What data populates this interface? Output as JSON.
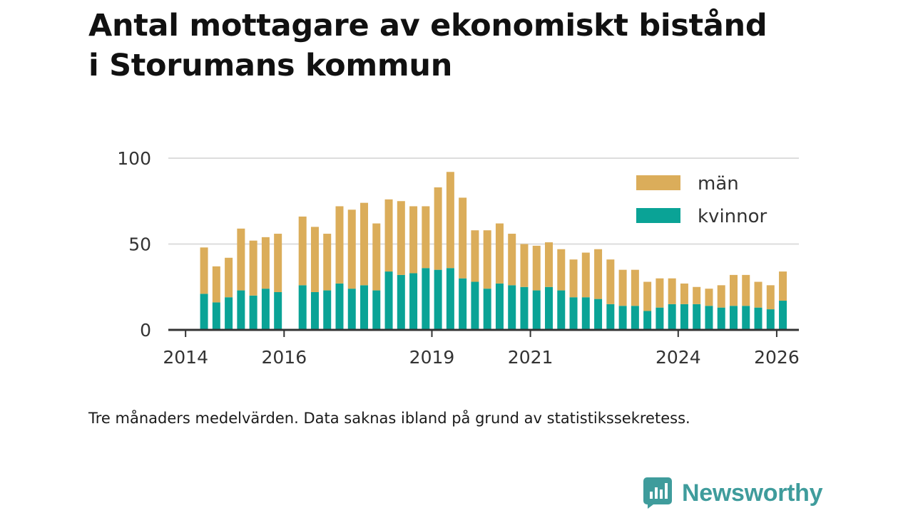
{
  "title_lines": [
    "Antal mottagare av ekonomiskt bistånd",
    "i Storumans kommun"
  ],
  "caption": "Tre månaders medelvärden. Data saknas ibland på grund av statistikssekretess.",
  "brand": "Newsworthy",
  "colors": {
    "man": "#dbad5a",
    "kvinnor": "#0aa396",
    "brand": "#3f9c9c"
  },
  "chart_data": {
    "type": "bar",
    "stacked": true,
    "title": "Antal mottagare av ekonomiskt bistånd i Storumans kommun",
    "xlabel": "",
    "ylabel": "",
    "ylim": [
      0,
      100
    ],
    "yticks": [
      0,
      50,
      100
    ],
    "xlim": [
      2013.65,
      2026.45
    ],
    "xticks": [
      2014,
      2016,
      2019,
      2021,
      2024,
      2026
    ],
    "grid": true,
    "legend_position": "top-right",
    "x": [
      2014.375,
      2014.625,
      2014.875,
      2015.125,
      2015.375,
      2015.625,
      2015.875,
      2016.375,
      2016.625,
      2016.875,
      2017.125,
      2017.375,
      2017.625,
      2017.875,
      2018.125,
      2018.375,
      2018.625,
      2018.875,
      2019.125,
      2019.375,
      2019.625,
      2019.875,
      2020.125,
      2020.375,
      2020.625,
      2020.875,
      2021.125,
      2021.375,
      2021.625,
      2021.875,
      2022.125,
      2022.375,
      2022.625,
      2022.875,
      2023.125,
      2023.375,
      2023.625,
      2023.875,
      2024.125,
      2024.375,
      2024.625,
      2024.875,
      2025.125,
      2025.375,
      2025.625,
      2025.875,
      2026.125
    ],
    "series": [
      {
        "name": "kvinnor",
        "values": [
          21,
          16,
          19,
          23,
          20,
          24,
          22,
          26,
          22,
          23,
          27,
          24,
          26,
          23,
          34,
          32,
          33,
          36,
          35,
          36,
          30,
          28,
          24,
          27,
          26,
          25,
          23,
          25,
          23,
          19,
          19,
          18,
          15,
          14,
          14,
          11,
          13,
          15,
          15,
          15,
          14,
          13,
          14,
          14,
          13,
          12,
          17
        ]
      },
      {
        "name": "män",
        "values": [
          27,
          21,
          23,
          36,
          32,
          30,
          34,
          40,
          38,
          33,
          45,
          46,
          48,
          39,
          42,
          43,
          39,
          36,
          48,
          56,
          47,
          30,
          34,
          35,
          30,
          25,
          26,
          26,
          24,
          22,
          26,
          29,
          26,
          21,
          21,
          17,
          17,
          15,
          12,
          10,
          10,
          13,
          18,
          18,
          15,
          14,
          17
        ]
      }
    ]
  }
}
